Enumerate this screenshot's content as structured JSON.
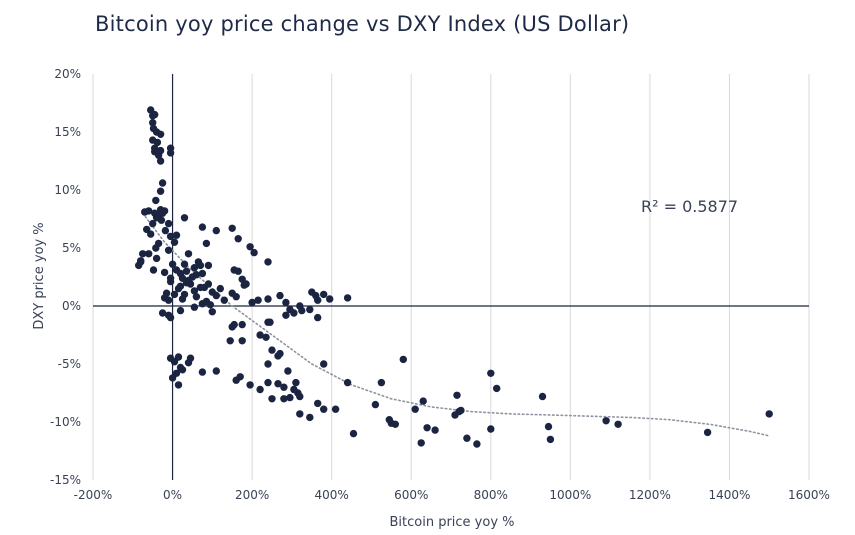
{
  "title": "Bitcoin yoy price change vs DXY Index (US Dollar)",
  "colors": {
    "points": "#1b2440",
    "grid": "#d9d9d9",
    "axis": "#1b2440",
    "trend": "#8f93a0"
  },
  "chart_data": {
    "type": "scatter",
    "title": "Bitcoin yoy price change vs DXY Index (US Dollar)",
    "xlabel": "Bitcoin price yoy %",
    "ylabel": "DXY price yoy %",
    "xlim": [
      -200,
      1600
    ],
    "ylim": [
      -15,
      20
    ],
    "grid": "vertical",
    "x_ticks": [
      -200,
      0,
      200,
      400,
      600,
      800,
      1000,
      1200,
      1400,
      1600
    ],
    "y_ticks": [
      -15,
      -10,
      -5,
      0,
      5,
      10,
      15,
      20
    ],
    "x_tick_labels": [
      "-200%",
      "0%",
      "200%",
      "400%",
      "600%",
      "800%",
      "1000%",
      "1200%",
      "1400%",
      "1600%"
    ],
    "y_tick_labels": [
      "-15%",
      "-10%",
      "-5%",
      "0%",
      "5%",
      "10%",
      "15%",
      "20%"
    ],
    "annotation": "R² = 0.5877",
    "trendline": {
      "style": "dotted",
      "points": [
        [
          -75,
          8.0
        ],
        [
          -20,
          5.5
        ],
        [
          50,
          3.0
        ],
        [
          150,
          0.0
        ],
        [
          250,
          -2.5
        ],
        [
          350,
          -5.0
        ],
        [
          450,
          -6.8
        ],
        [
          550,
          -8.0
        ],
        [
          650,
          -8.7
        ],
        [
          750,
          -9.1
        ],
        [
          850,
          -9.3
        ],
        [
          950,
          -9.4
        ],
        [
          1050,
          -9.5
        ],
        [
          1150,
          -9.6
        ],
        [
          1250,
          -9.8
        ],
        [
          1350,
          -10.2
        ],
        [
          1450,
          -10.8
        ],
        [
          1500,
          -11.2
        ]
      ]
    },
    "points": [
      [
        -55,
        16.9
      ],
      [
        -50,
        16.4
      ],
      [
        -45,
        16.5
      ],
      [
        -50,
        15.8
      ],
      [
        -40,
        15.0
      ],
      [
        -48,
        15.3
      ],
      [
        -30,
        14.8
      ],
      [
        -50,
        14.3
      ],
      [
        -38,
        14.1
      ],
      [
        -45,
        13.6
      ],
      [
        -30,
        13.4
      ],
      [
        -45,
        13.3
      ],
      [
        -35,
        13.0
      ],
      [
        -5,
        13.2
      ],
      [
        -5,
        13.6
      ],
      [
        -30,
        12.5
      ],
      [
        -25,
        10.6
      ],
      [
        -30,
        9.9
      ],
      [
        -70,
        8.1
      ],
      [
        -60,
        8.2
      ],
      [
        -45,
        8.0
      ],
      [
        -40,
        7.6
      ],
      [
        -30,
        8.3
      ],
      [
        -20,
        8.2
      ],
      [
        -10,
        7.1
      ],
      [
        -35,
        7.8
      ],
      [
        -28,
        7.4
      ],
      [
        -25,
        8.0
      ],
      [
        -50,
        7.1
      ],
      [
        -65,
        6.6
      ],
      [
        -55,
        6.2
      ],
      [
        -42,
        9.1
      ],
      [
        -18,
        6.5
      ],
      [
        -5,
        6.0
      ],
      [
        30,
        7.6
      ],
      [
        5,
        5.5
      ],
      [
        10,
        6.1
      ],
      [
        -35,
        5.4
      ],
      [
        -42,
        5.0
      ],
      [
        -40,
        4.1
      ],
      [
        -60,
        4.5
      ],
      [
        -80,
        3.9
      ],
      [
        -75,
        4.5
      ],
      [
        -85,
        3.5
      ],
      [
        -80,
        3.8
      ],
      [
        -48,
        3.1
      ],
      [
        -10,
        4.8
      ],
      [
        0,
        3.6
      ],
      [
        -20,
        2.9
      ],
      [
        -5,
        2.4
      ],
      [
        10,
        3.1
      ],
      [
        20,
        2.8
      ],
      [
        25,
        2.4
      ],
      [
        30,
        3.6
      ],
      [
        35,
        3.0
      ],
      [
        40,
        2.2
      ],
      [
        45,
        1.9
      ],
      [
        50,
        2.5
      ],
      [
        55,
        3.3
      ],
      [
        60,
        2.7
      ],
      [
        65,
        3.8
      ],
      [
        70,
        3.5
      ],
      [
        75,
        2.8
      ],
      [
        80,
        1.6
      ],
      [
        90,
        1.9
      ],
      [
        100,
        1.2
      ],
      [
        110,
        0.9
      ],
      [
        120,
        1.5
      ],
      [
        15,
        1.5
      ],
      [
        5,
        1.0
      ],
      [
        -15,
        1.1
      ],
      [
        -10,
        0.5
      ],
      [
        -20,
        0.7
      ],
      [
        20,
        1.7
      ],
      [
        25,
        0.6
      ],
      [
        30,
        1.0
      ],
      [
        35,
        2.0
      ],
      [
        55,
        1.3
      ],
      [
        60,
        0.8
      ],
      [
        70,
        1.6
      ],
      [
        75,
        0.2
      ],
      [
        85,
        0.4
      ],
      [
        95,
        0.1
      ],
      [
        -5,
        2.1
      ],
      [
        40,
        4.5
      ],
      [
        75,
        6.8
      ],
      [
        110,
        6.5
      ],
      [
        85,
        5.4
      ],
      [
        90,
        3.5
      ],
      [
        150,
        6.7
      ],
      [
        165,
        5.8
      ],
      [
        195,
        5.1
      ],
      [
        205,
        4.6
      ],
      [
        240,
        3.8
      ],
      [
        155,
        3.1
      ],
      [
        165,
        3.0
      ],
      [
        175,
        2.3
      ],
      [
        185,
        1.9
      ],
      [
        180,
        1.8
      ],
      [
        150,
        1.1
      ],
      [
        160,
        0.8
      ],
      [
        130,
        0.5
      ],
      [
        200,
        0.3
      ],
      [
        215,
        0.5
      ],
      [
        240,
        0.6
      ],
      [
        270,
        0.9
      ],
      [
        285,
        0.3
      ],
      [
        320,
        0.0
      ],
      [
        350,
        1.2
      ],
      [
        360,
        0.9
      ],
      [
        365,
        0.5
      ],
      [
        380,
        1.0
      ],
      [
        395,
        0.6
      ],
      [
        440,
        0.7
      ],
      [
        -25,
        -0.6
      ],
      [
        -10,
        -0.8
      ],
      [
        -5,
        -1.0
      ],
      [
        20,
        -0.4
      ],
      [
        55,
        -0.1
      ],
      [
        100,
        -0.5
      ],
      [
        150,
        -1.8
      ],
      [
        145,
        -3.0
      ],
      [
        155,
        -1.6
      ],
      [
        175,
        -1.6
      ],
      [
        175,
        -3.0
      ],
      [
        240,
        -1.4
      ],
      [
        245,
        -1.4
      ],
      [
        220,
        -2.5
      ],
      [
        285,
        -0.8
      ],
      [
        305,
        -0.6
      ],
      [
        325,
        -0.4
      ],
      [
        365,
        -1.0
      ],
      [
        345,
        -0.3
      ],
      [
        295,
        -0.3
      ],
      [
        235,
        -2.7
      ],
      [
        250,
        -3.8
      ],
      [
        265,
        -4.3
      ],
      [
        270,
        -4.1
      ],
      [
        240,
        -5.0
      ],
      [
        -5,
        -4.5
      ],
      [
        5,
        -4.8
      ],
      [
        15,
        -4.4
      ],
      [
        20,
        -5.3
      ],
      [
        10,
        -5.8
      ],
      [
        0,
        -6.2
      ],
      [
        15,
        -6.8
      ],
      [
        45,
        -4.5
      ],
      [
        25,
        -5.5
      ],
      [
        40,
        -4.9
      ],
      [
        75,
        -5.7
      ],
      [
        110,
        -5.6
      ],
      [
        160,
        -6.4
      ],
      [
        170,
        -6.1
      ],
      [
        195,
        -6.8
      ],
      [
        220,
        -7.2
      ],
      [
        240,
        -6.6
      ],
      [
        265,
        -6.7
      ],
      [
        280,
        -7.0
      ],
      [
        310,
        -6.6
      ],
      [
        290,
        -5.6
      ],
      [
        280,
        -8.0
      ],
      [
        305,
        -7.2
      ],
      [
        315,
        -7.5
      ],
      [
        250,
        -8.0
      ],
      [
        295,
        -7.9
      ],
      [
        320,
        -7.8
      ],
      [
        320,
        -9.3
      ],
      [
        345,
        -9.6
      ],
      [
        365,
        -8.4
      ],
      [
        380,
        -8.9
      ],
      [
        380,
        -5.0
      ],
      [
        410,
        -8.9
      ],
      [
        440,
        -6.6
      ],
      [
        455,
        -11.0
      ],
      [
        510,
        -8.5
      ],
      [
        525,
        -6.6
      ],
      [
        545,
        -9.8
      ],
      [
        550,
        -10.1
      ],
      [
        560,
        -10.2
      ],
      [
        580,
        -4.6
      ],
      [
        610,
        -8.9
      ],
      [
        630,
        -8.2
      ],
      [
        625,
        -11.8
      ],
      [
        640,
        -10.5
      ],
      [
        660,
        -10.7
      ],
      [
        715,
        -7.7
      ],
      [
        720,
        -9.1
      ],
      [
        710,
        -9.4
      ],
      [
        725,
        -9.0
      ],
      [
        740,
        -11.4
      ],
      [
        765,
        -11.9
      ],
      [
        800,
        -5.8
      ],
      [
        815,
        -7.1
      ],
      [
        800,
        -10.6
      ],
      [
        930,
        -7.8
      ],
      [
        945,
        -10.4
      ],
      [
        950,
        -11.5
      ],
      [
        1090,
        -9.9
      ],
      [
        1120,
        -10.2
      ],
      [
        1345,
        -10.9
      ],
      [
        1500,
        -9.3
      ]
    ]
  }
}
